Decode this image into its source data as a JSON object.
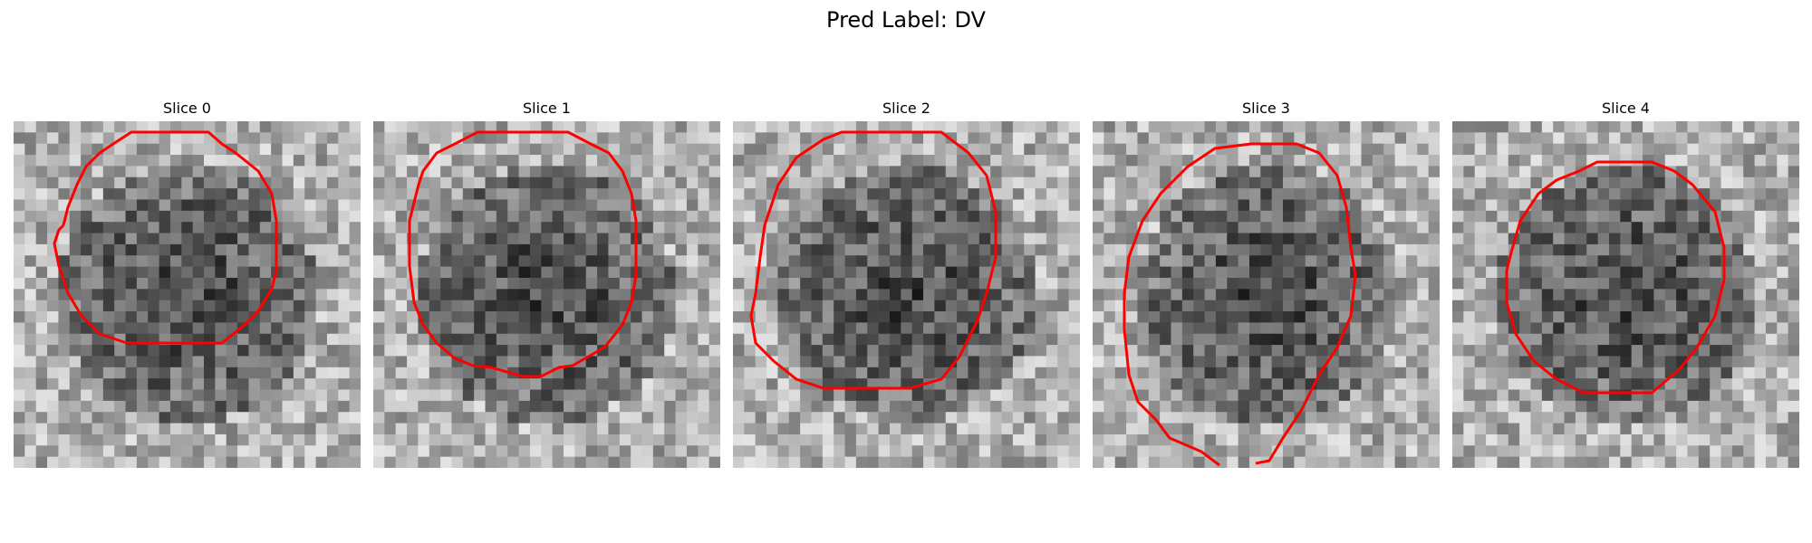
{
  "figure": {
    "title": "Pred Label: DV"
  },
  "contour_color": "#ff0000",
  "panels": [
    {
      "title": "Slice 0",
      "image": "grayscale-microscopy-patch-with-contour"
    },
    {
      "title": "Slice 1",
      "image": "grayscale-microscopy-patch-with-contour"
    },
    {
      "title": "Slice 2",
      "image": "grayscale-microscopy-patch-with-contour"
    },
    {
      "title": "Slice 3",
      "image": "grayscale-microscopy-patch-with-contour"
    },
    {
      "title": "Slice 4",
      "image": "grayscale-microscopy-patch-with-contour"
    }
  ]
}
